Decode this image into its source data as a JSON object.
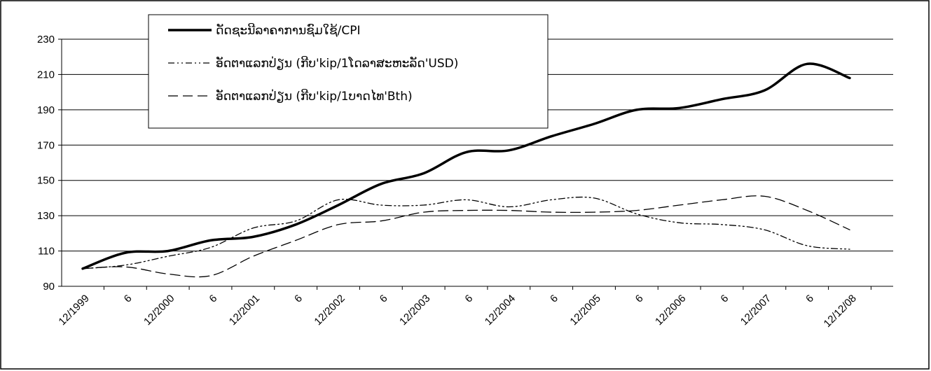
{
  "chart_data": {
    "type": "line",
    "title": "",
    "xlabel": "",
    "ylabel": "",
    "ylim": [
      90,
      230
    ],
    "y_ticks": [
      90,
      110,
      130,
      150,
      170,
      190,
      210,
      230
    ],
    "x_tick_labels": [
      "12/1999",
      "6",
      "12/2000",
      "6",
      "12/2001",
      "6",
      "12/2002",
      "6",
      "12/2003",
      "6",
      "12/2004",
      "6",
      "12/2005",
      "6",
      "12/2006",
      "6",
      "12/2007",
      "6",
      "12/12/08"
    ],
    "grid": "horizontal",
    "legend_position": "top-left",
    "series": [
      {
        "name": "ດັດຊະນີລາຄາການຊົມໃຊ້/CPI",
        "style": "solid-thick",
        "color": "#000000",
        "values": [
          100,
          109,
          110,
          116,
          118,
          125,
          136,
          148,
          154,
          166,
          167,
          175,
          182,
          190,
          191,
          196,
          201,
          216,
          208
        ]
      },
      {
        "name": "ອັດຕາແລກປ່ຽນ (ກີບ'kip/1ໂດລາສະຫະລັດ'USD)",
        "style": "dash-dot-dot",
        "color": "#000000",
        "values": [
          100,
          102,
          107,
          112,
          123,
          127,
          139,
          136,
          136,
          139,
          135,
          139,
          140,
          131,
          126,
          125,
          122,
          113,
          111
        ]
      },
      {
        "name": "ອັດຕາແລກປ່ຽນ (ກີບ'kip/1ບາດໄທ'Bth)",
        "style": "dashed",
        "color": "#000000",
        "values": [
          100,
          101,
          97,
          96,
          107,
          116,
          125,
          127,
          132,
          133,
          133,
          132,
          132,
          133,
          136,
          139,
          141,
          133,
          122
        ]
      }
    ]
  }
}
